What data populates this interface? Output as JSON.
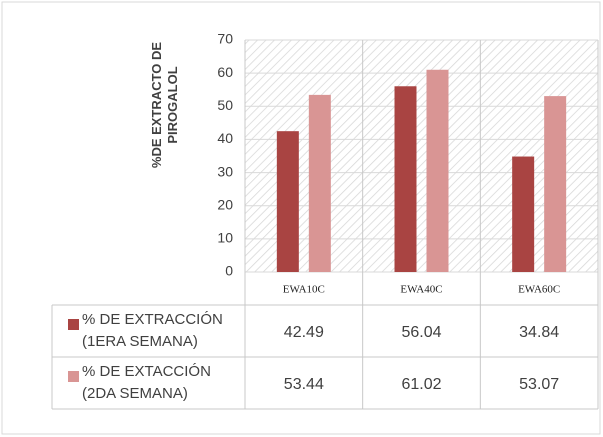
{
  "chart_data": {
    "type": "bar",
    "y_label": "%DE EXTRACTO DE PIROGALOL",
    "categories": [
      "EWA10C",
      "EWA40C",
      "EWA60C"
    ],
    "series": [
      {
        "name": "% DE EXTRACCIÓN (1ERA SEMANA)",
        "color": "#a94442",
        "values": [
          42.49,
          56.04,
          34.84
        ]
      },
      {
        "name": "% DE EXTACCIÓN (2DA SEMANA)",
        "color": "#d99594",
        "values": [
          53.44,
          61.02,
          53.07
        ]
      }
    ],
    "ylim": [
      0,
      70
    ],
    "yticks": [
      0,
      10,
      20,
      30,
      40,
      50,
      60,
      70
    ],
    "grid": true
  }
}
